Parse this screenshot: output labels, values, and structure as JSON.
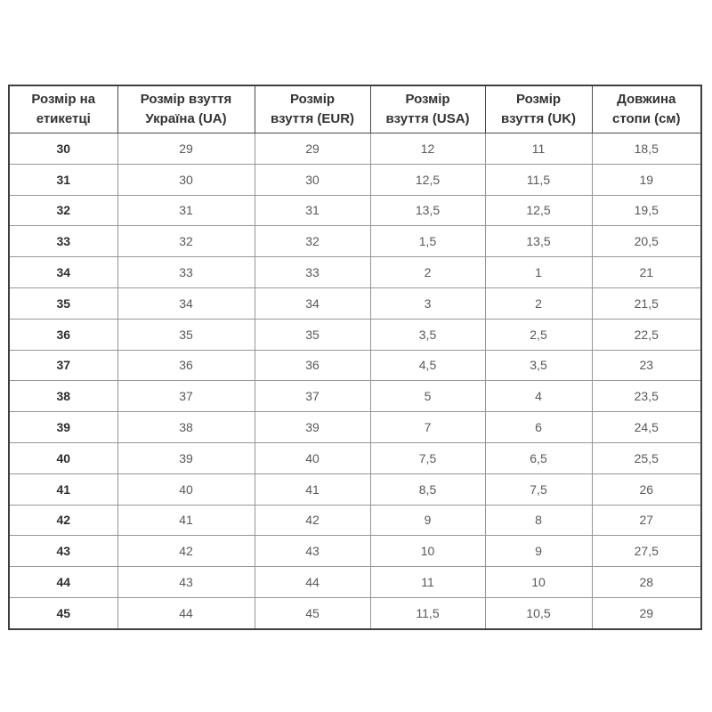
{
  "page": {
    "background": "#ffffff"
  },
  "table": {
    "name": "shoe-size-conversion-table",
    "columns": [
      "Розмір на\nетикетці",
      "Розмір взуття\nУкраїна (UA)",
      "Розмір\nвзуття (EUR)",
      "Розмір\nвзуття (USA)",
      "Розмір\nвзуття (UK)",
      "Довжина\nстопи (см)"
    ],
    "rows": [
      [
        "30",
        "29",
        "29",
        "12",
        "11",
        "18,5"
      ],
      [
        "31",
        "30",
        "30",
        "12,5",
        "11,5",
        "19"
      ],
      [
        "32",
        "31",
        "31",
        "13,5",
        "12,5",
        "19,5"
      ],
      [
        "33",
        "32",
        "32",
        "1,5",
        "13,5",
        "20,5"
      ],
      [
        "34",
        "33",
        "33",
        "2",
        "1",
        "21"
      ],
      [
        "35",
        "34",
        "34",
        "3",
        "2",
        "21,5"
      ],
      [
        "36",
        "35",
        "35",
        "3,5",
        "2,5",
        "22,5"
      ],
      [
        "37",
        "36",
        "36",
        "4,5",
        "3,5",
        "23"
      ],
      [
        "38",
        "37",
        "37",
        "5",
        "4",
        "23,5"
      ],
      [
        "39",
        "38",
        "39",
        "7",
        "6",
        "24,5"
      ],
      [
        "40",
        "39",
        "40",
        "7,5",
        "6,5",
        "25,5"
      ],
      [
        "41",
        "40",
        "41",
        "8,5",
        "7,5",
        "26"
      ],
      [
        "42",
        "41",
        "42",
        "9",
        "8",
        "27"
      ],
      [
        "43",
        "42",
        "43",
        "10",
        "9",
        "27,5"
      ],
      [
        "44",
        "43",
        "44",
        "11",
        "10",
        "28"
      ],
      [
        "45",
        "44",
        "45",
        "11,5",
        "10,5",
        "29"
      ]
    ],
    "colors": {
      "border_outer": "#3f3f3f",
      "border_header": "#4a4a4a",
      "border_inner": "#969696",
      "header_text": "#333333",
      "label_text": "#2e2e2e",
      "value_text": "#595959"
    }
  }
}
